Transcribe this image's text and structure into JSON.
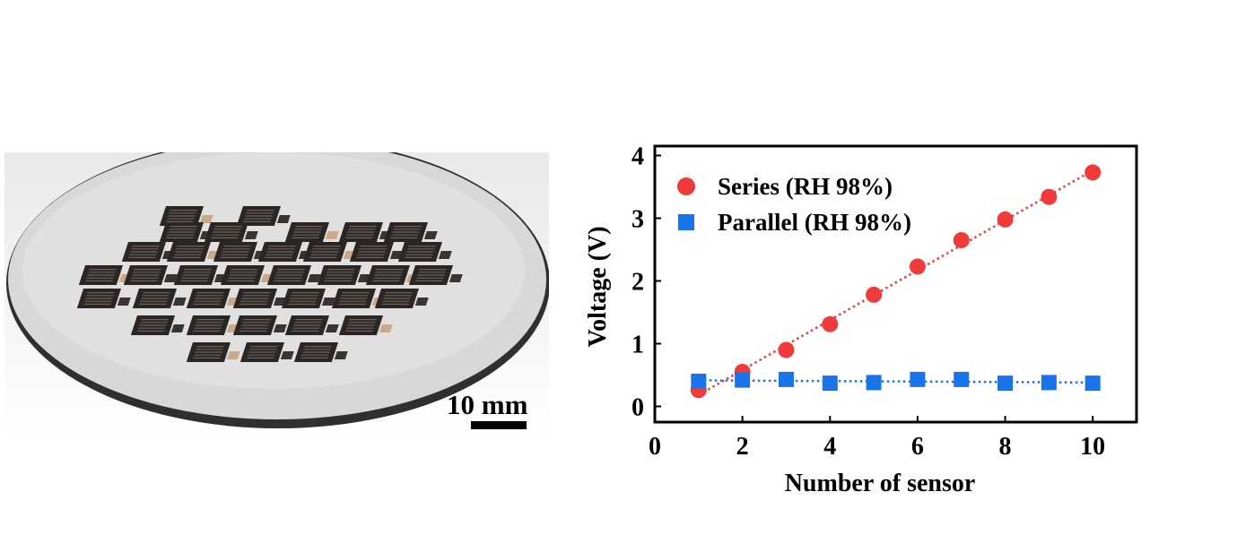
{
  "photo": {
    "scale_bar_label": "10 mm"
  },
  "chart_data": {
    "type": "scatter",
    "xlabel": "Number of sensor",
    "ylabel": "Voltage (V)",
    "xlim": [
      0,
      11
    ],
    "ylim": [
      -0.25,
      4.15
    ],
    "xticks": [
      0,
      2,
      4,
      6,
      8,
      10
    ],
    "yticks": [
      0,
      1,
      2,
      3,
      4
    ],
    "legend_position": "top-left",
    "series": [
      {
        "name": "Series (RH 98%)",
        "marker": "circle",
        "color": "#ef3b3b",
        "line_style": "dotted",
        "x": [
          1,
          2,
          3,
          4,
          5,
          6,
          7,
          8,
          9,
          10
        ],
        "y": [
          0.26,
          0.55,
          0.9,
          1.31,
          1.78,
          2.23,
          2.65,
          2.98,
          3.34,
          3.73
        ]
      },
      {
        "name": "Parallel (RH 98%)",
        "marker": "square",
        "color": "#1a73e8",
        "line_style": "dotted",
        "x": [
          1,
          2,
          3,
          4,
          5,
          6,
          7,
          8,
          9,
          10
        ],
        "y": [
          0.4,
          0.42,
          0.43,
          0.37,
          0.38,
          0.43,
          0.43,
          0.37,
          0.38,
          0.37
        ]
      }
    ]
  }
}
